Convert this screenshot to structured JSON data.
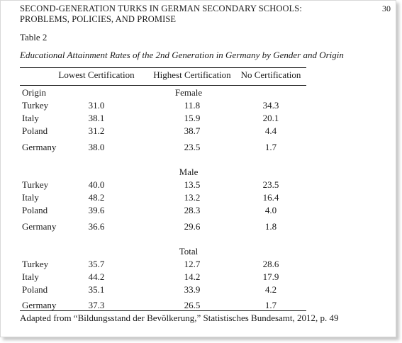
{
  "running_head": "SECOND-GENERATION TURKS IN GERMAN SECONDARY SCHOOLS: PROBLEMS, POLICIES, AND PROMISE",
  "page_number": "30",
  "table_label": "Table 2",
  "table_title": "Educational Attainment Rates of the 2nd Generation in Germany by Gender and Origin",
  "columns": [
    "Lowest Certification",
    "Highest Certification",
    "No Certification"
  ],
  "row_header": "Origin",
  "groups": [
    {
      "label": "Female",
      "rows": [
        {
          "origin": "Turkey",
          "values": [
            "31.0",
            "11.8",
            "34.3"
          ]
        },
        {
          "origin": "Italy",
          "values": [
            "38.1",
            "15.9",
            "20.1"
          ]
        },
        {
          "origin": "Poland",
          "values": [
            "31.2",
            "38.7",
            "4.4"
          ]
        },
        {
          "origin": "Germany",
          "values": [
            "38.0",
            "23.5",
            "1.7"
          ]
        }
      ]
    },
    {
      "label": "Male",
      "rows": [
        {
          "origin": "Turkey",
          "values": [
            "40.0",
            "13.5",
            "23.5"
          ]
        },
        {
          "origin": "Italy",
          "values": [
            "48.2",
            "13.2",
            "16.4"
          ]
        },
        {
          "origin": "Poland",
          "values": [
            "39.6",
            "28.3",
            "4.0"
          ]
        },
        {
          "origin": "Germany",
          "values": [
            "36.6",
            "29.6",
            "1.8"
          ]
        }
      ]
    },
    {
      "label": "Total",
      "rows": [
        {
          "origin": "Turkey",
          "values": [
            "35.7",
            "12.7",
            "28.6"
          ]
        },
        {
          "origin": "Italy",
          "values": [
            "44.2",
            "14.2",
            "17.9"
          ]
        },
        {
          "origin": "Poland",
          "values": [
            "35.1",
            "33.9",
            "4.2"
          ]
        },
        {
          "origin": "Germany",
          "values": [
            "37.3",
            "26.5",
            "1.7"
          ]
        }
      ]
    }
  ],
  "source_note": "Adapted from “Bildungsstand der Bevölkerung,” Statistisches Bundesamt, 2012, p. 49"
}
